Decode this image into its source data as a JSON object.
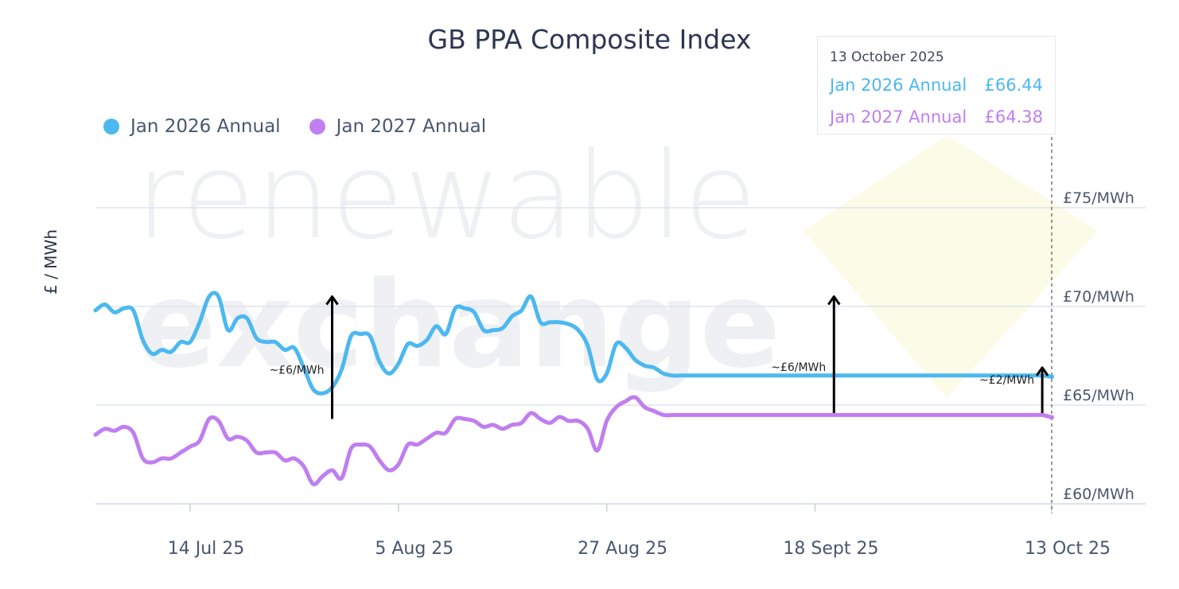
{
  "chart_data": {
    "type": "line",
    "title": "GB PPA Composite Index",
    "ylabel": "£ / MWh",
    "ylim": [
      60,
      78
    ],
    "y_ticks": [
      {
        "value": 75,
        "label": "£75/MWh"
      },
      {
        "value": 70,
        "label": "£70/MWh"
      },
      {
        "value": 65,
        "label": "£65/MWh"
      },
      {
        "value": 60,
        "label": "£60/MWh"
      }
    ],
    "x_ticks": [
      {
        "date": "2025-07-14",
        "label": "14 Jul 25"
      },
      {
        "date": "2025-08-05",
        "label": "5 Aug 25"
      },
      {
        "date": "2025-08-27",
        "label": "27 Aug 25"
      },
      {
        "date": "2025-09-18",
        "label": "18 Sept 25"
      },
      {
        "date": "2025-10-13",
        "label": "13 Oct 25"
      }
    ],
    "x": [
      "2025-07-04",
      "2025-07-05",
      "2025-07-06",
      "2025-07-07",
      "2025-07-08",
      "2025-07-09",
      "2025-07-10",
      "2025-07-11",
      "2025-07-12",
      "2025-07-13",
      "2025-07-14",
      "2025-07-15",
      "2025-07-16",
      "2025-07-17",
      "2025-07-18",
      "2025-07-19",
      "2025-07-20",
      "2025-07-21",
      "2025-07-22",
      "2025-07-23",
      "2025-07-24",
      "2025-07-25",
      "2025-07-26",
      "2025-07-27",
      "2025-07-28",
      "2025-07-29",
      "2025-07-30",
      "2025-07-31",
      "2025-08-01",
      "2025-08-02",
      "2025-08-03",
      "2025-08-04",
      "2025-08-05",
      "2025-08-06",
      "2025-08-07",
      "2025-08-08",
      "2025-08-09",
      "2025-08-10",
      "2025-08-11",
      "2025-08-12",
      "2025-08-13",
      "2025-08-14",
      "2025-08-15",
      "2025-08-16",
      "2025-08-17",
      "2025-08-18",
      "2025-08-19",
      "2025-08-20",
      "2025-08-21",
      "2025-08-22",
      "2025-08-23",
      "2025-08-24",
      "2025-08-25",
      "2025-08-26",
      "2025-08-27",
      "2025-08-28",
      "2025-08-29",
      "2025-08-30",
      "2025-08-31",
      "2025-09-01",
      "2025-09-02",
      "2025-09-03",
      "2025-09-04",
      "2025-09-05",
      "2025-09-06",
      "2025-09-07",
      "2025-09-08",
      "2025-09-09",
      "2025-09-10",
      "2025-09-11",
      "2025-09-12",
      "2025-09-13",
      "2025-09-14",
      "2025-09-15",
      "2025-09-16",
      "2025-09-17",
      "2025-09-18",
      "2025-09-19",
      "2025-09-20",
      "2025-09-21",
      "2025-09-22",
      "2025-09-23",
      "2025-09-24",
      "2025-09-25",
      "2025-09-26",
      "2025-09-27",
      "2025-09-28",
      "2025-09-29",
      "2025-09-30",
      "2025-10-01",
      "2025-10-02",
      "2025-10-03",
      "2025-10-04",
      "2025-10-05",
      "2025-10-06",
      "2025-10-07",
      "2025-10-08",
      "2025-10-09",
      "2025-10-10",
      "2025-10-11",
      "2025-10-12",
      "2025-10-13"
    ],
    "series": [
      {
        "name": "Jan 2026 Annual",
        "color": "#4cb8f0",
        "values": [
          69.8,
          70.1,
          69.7,
          69.9,
          69.8,
          68.3,
          67.6,
          67.8,
          67.7,
          68.2,
          68.2,
          69.2,
          70.5,
          70.5,
          68.8,
          69.4,
          69.4,
          68.4,
          68.2,
          68.2,
          67.8,
          67.9,
          66.9,
          65.8,
          65.6,
          65.9,
          66.8,
          68.5,
          68.6,
          68.5,
          67.2,
          66.6,
          67.1,
          68.1,
          68.0,
          68.3,
          69.0,
          68.6,
          69.9,
          69.9,
          69.7,
          68.8,
          68.8,
          68.9,
          69.5,
          69.8,
          70.5,
          69.2,
          69.2,
          69.2,
          69.1,
          68.8,
          68.0,
          66.3,
          66.6,
          68.1,
          67.9,
          67.3,
          67.0,
          66.9,
          66.6,
          66.5,
          66.5,
          66.5,
          66.5,
          66.5,
          66.5,
          66.5,
          66.5,
          66.5,
          66.5,
          66.5,
          66.5,
          66.5,
          66.5,
          66.5,
          66.5,
          66.5,
          66.5,
          66.5,
          66.5,
          66.5,
          66.5,
          66.5,
          66.5,
          66.5,
          66.5,
          66.5,
          66.5,
          66.5,
          66.5,
          66.5,
          66.5,
          66.5,
          66.5,
          66.5,
          66.5,
          66.5,
          66.5,
          66.5,
          66.5,
          66.44
        ]
      },
      {
        "name": "Jan 2027 Annual",
        "color": "#c07ef0",
        "values": [
          63.5,
          63.8,
          63.7,
          63.9,
          63.6,
          62.3,
          62.1,
          62.3,
          62.3,
          62.6,
          62.9,
          63.2,
          64.3,
          64.2,
          63.3,
          63.4,
          63.2,
          62.6,
          62.6,
          62.6,
          62.2,
          62.3,
          61.9,
          61.0,
          61.4,
          61.7,
          61.3,
          62.8,
          63.0,
          62.9,
          62.2,
          61.7,
          62.0,
          63.0,
          63.0,
          63.3,
          63.6,
          63.6,
          64.3,
          64.3,
          64.2,
          63.9,
          64.0,
          63.8,
          64.0,
          64.1,
          64.6,
          64.3,
          64.1,
          64.4,
          64.2,
          64.2,
          63.8,
          62.7,
          64.2,
          64.9,
          65.2,
          65.4,
          64.9,
          64.7,
          64.5,
          64.5,
          64.5,
          64.5,
          64.5,
          64.5,
          64.5,
          64.5,
          64.5,
          64.5,
          64.5,
          64.5,
          64.5,
          64.5,
          64.5,
          64.5,
          64.5,
          64.5,
          64.5,
          64.5,
          64.5,
          64.5,
          64.5,
          64.5,
          64.5,
          64.5,
          64.5,
          64.5,
          64.5,
          64.5,
          64.5,
          64.5,
          64.5,
          64.5,
          64.5,
          64.5,
          64.5,
          64.5,
          64.5,
          64.5,
          64.5,
          64.38
        ]
      }
    ],
    "annotations": [
      {
        "x": "2025-07-29",
        "y_from": 64.3,
        "y_to": 70.5,
        "label": "~£6/MWh"
      },
      {
        "x": "2025-09-20",
        "y_from": 64.6,
        "y_to": 70.5,
        "label": "~£6/MWh"
      },
      {
        "x": "2025-10-12",
        "y_from": 64.6,
        "y_to": 66.9,
        "label": "~£2/MWh"
      }
    ],
    "grid": true,
    "legend_position": "top-left",
    "crosshair_date": "2025-10-13"
  },
  "tooltip": {
    "date": "13 October 2025",
    "rows": [
      {
        "label": "Jan 2026 Annual",
        "value": "£66.44",
        "color": "#4cb8f0"
      },
      {
        "label": "Jan 2027 Annual",
        "value": "£64.38",
        "color": "#c07ef0"
      }
    ]
  },
  "watermark": {
    "line1": "renewable",
    "line2": "exchange"
  }
}
